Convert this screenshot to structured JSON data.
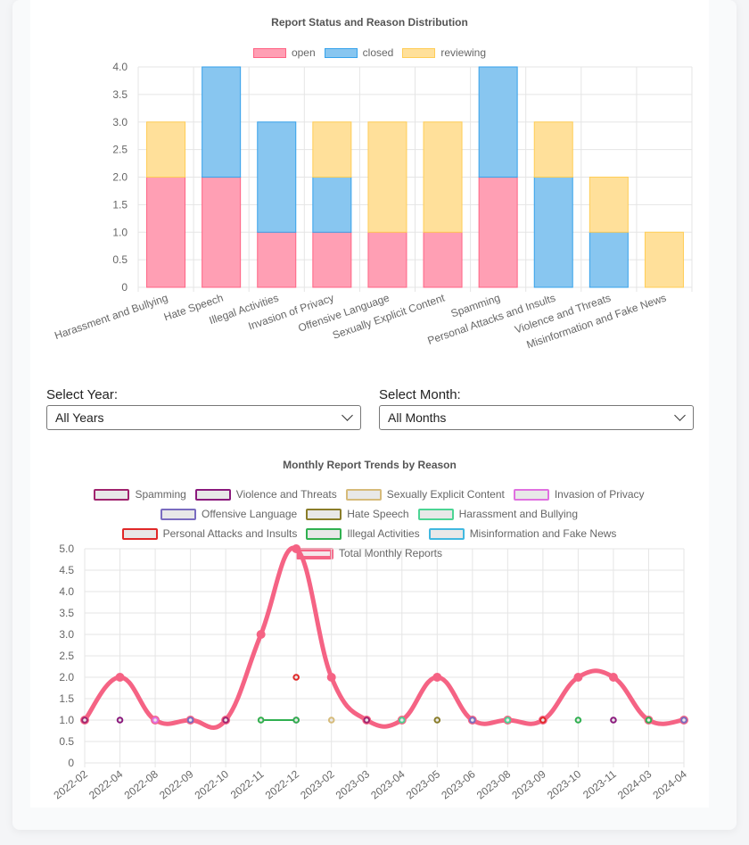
{
  "bar_chart": {
    "title": "Report Status and Reason Distribution",
    "legend": [
      {
        "label": "open",
        "fill": "#ff9fb4",
        "stroke": "#ff6384"
      },
      {
        "label": "closed",
        "fill": "#88c6f0",
        "stroke": "#36a2eb"
      },
      {
        "label": "reviewing",
        "fill": "#ffe09a",
        "stroke": "#ffcd56"
      }
    ]
  },
  "filters": {
    "year_label": "Select Year:",
    "year_value": "All Years",
    "month_label": "Select Month:",
    "month_value": "All Months"
  },
  "line_chart": {
    "title": "Monthly Report Trends by Reason",
    "legend": [
      {
        "label": "Spamming",
        "color": "#a0246e"
      },
      {
        "label": "Violence and Threats",
        "color": "#8b1a7d"
      },
      {
        "label": "Sexually Explicit Content",
        "color": "#d6bb7a"
      },
      {
        "label": "Invasion of Privacy",
        "color": "#e070e0"
      },
      {
        "label": "Offensive Language",
        "color": "#7a6cc0"
      },
      {
        "label": "Hate Speech",
        "color": "#8a7d2a"
      },
      {
        "label": "Harassment and Bullying",
        "color": "#4cd494"
      },
      {
        "label": "Personal Attacks and Insults",
        "color": "#e02828"
      },
      {
        "label": "Illegal Activities",
        "color": "#30b050"
      },
      {
        "label": "Misinformation and Fake News",
        "color": "#40b8e0"
      },
      {
        "label": "Total Monthly Reports",
        "color": "#f56384"
      }
    ]
  },
  "chart_data": [
    {
      "type": "bar",
      "stacked": true,
      "title": "Report Status and Reason Distribution",
      "categories": [
        "Harassment and Bullying",
        "Hate Speech",
        "Illegal Activities",
        "Invasion of Privacy",
        "Offensive Language",
        "Sexually Explicit Content",
        "Spamming",
        "Personal Attacks and Insults",
        "Violence and Threats",
        "Misinformation and Fake News"
      ],
      "series": [
        {
          "name": "open",
          "values": [
            2,
            2,
            1,
            1,
            1,
            1,
            2,
            0,
            0,
            0
          ]
        },
        {
          "name": "closed",
          "values": [
            0,
            2,
            2,
            1,
            0,
            0,
            2,
            2,
            1,
            0
          ]
        },
        {
          "name": "reviewing",
          "values": [
            1,
            0,
            0,
            1,
            2,
            2,
            0,
            1,
            1,
            1
          ]
        }
      ],
      "ylim": [
        0,
        4
      ],
      "yticks": [
        "0",
        "0.5",
        "1.0",
        "1.5",
        "2.0",
        "2.5",
        "3.0",
        "3.5",
        "4.0"
      ],
      "legend_position": "top"
    },
    {
      "type": "line",
      "title": "Monthly Report Trends by Reason",
      "x": [
        "2022-02",
        "2022-04",
        "2022-08",
        "2022-09",
        "2022-10",
        "2022-11",
        "2022-12",
        "2023-02",
        "2023-03",
        "2023-04",
        "2023-05",
        "2023-06",
        "2023-08",
        "2023-09",
        "2023-10",
        "2023-11",
        "2024-03",
        "2024-04"
      ],
      "series": [
        {
          "name": "Spamming",
          "values": [
            1,
            null,
            null,
            null,
            1,
            null,
            null,
            null,
            1,
            null,
            null,
            null,
            null,
            null,
            null,
            null,
            null,
            null
          ]
        },
        {
          "name": "Violence and Threats",
          "values": [
            null,
            1,
            null,
            null,
            null,
            null,
            1,
            null,
            null,
            null,
            null,
            null,
            null,
            null,
            null,
            1,
            null,
            null
          ]
        },
        {
          "name": "Sexually Explicit Content",
          "values": [
            null,
            null,
            null,
            null,
            null,
            1,
            null,
            1,
            null,
            null,
            null,
            null,
            null,
            null,
            null,
            null,
            null,
            null
          ]
        },
        {
          "name": "Invasion of Privacy",
          "values": [
            null,
            null,
            1,
            null,
            null,
            null,
            null,
            null,
            null,
            null,
            null,
            null,
            null,
            null,
            null,
            null,
            null,
            null
          ]
        },
        {
          "name": "Offensive Language",
          "values": [
            null,
            null,
            null,
            1,
            null,
            null,
            null,
            null,
            null,
            null,
            null,
            1,
            null,
            null,
            null,
            null,
            null,
            1
          ]
        },
        {
          "name": "Hate Speech",
          "values": [
            null,
            null,
            null,
            null,
            null,
            null,
            null,
            null,
            null,
            null,
            1,
            null,
            null,
            null,
            null,
            null,
            null,
            null
          ]
        },
        {
          "name": "Harassment and Bullying",
          "values": [
            null,
            null,
            null,
            null,
            null,
            null,
            null,
            null,
            null,
            1,
            null,
            null,
            1,
            null,
            null,
            null,
            null,
            null
          ]
        },
        {
          "name": "Personal Attacks and Insults",
          "values": [
            null,
            null,
            null,
            null,
            null,
            null,
            2,
            null,
            null,
            null,
            null,
            null,
            null,
            1,
            null,
            null,
            null,
            null
          ]
        },
        {
          "name": "Illegal Activities",
          "values": [
            null,
            null,
            null,
            null,
            null,
            1,
            1,
            null,
            null,
            null,
            null,
            null,
            null,
            null,
            1,
            null,
            1,
            null
          ]
        },
        {
          "name": "Misinformation and Fake News",
          "values": [
            null,
            null,
            null,
            null,
            null,
            null,
            null,
            null,
            null,
            null,
            null,
            null,
            null,
            null,
            null,
            null,
            null,
            null
          ]
        },
        {
          "name": "Total Monthly Reports",
          "values": [
            1,
            2,
            1,
            1,
            1,
            3,
            5,
            2,
            1,
            1,
            2,
            1,
            1,
            1,
            2,
            2,
            1,
            1
          ]
        }
      ],
      "ylim": [
        0,
        5
      ],
      "yticks": [
        "0",
        "0.5",
        "1.0",
        "1.5",
        "2.0",
        "2.5",
        "3.0",
        "3.5",
        "4.0",
        "4.5",
        "5.0"
      ],
      "legend_position": "top"
    }
  ]
}
